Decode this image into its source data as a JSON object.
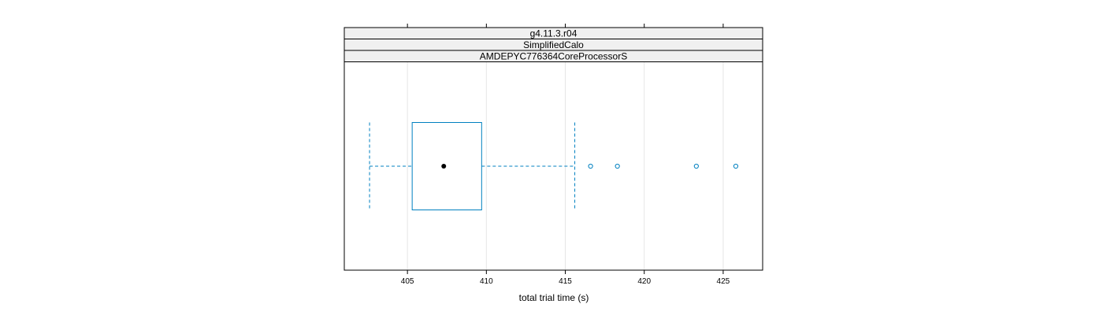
{
  "chart_data": {
    "type": "boxplot",
    "strips": [
      "g4.11.3.r04",
      "SimplifiedCalo",
      "AMDEPYC776364CoreProcessorS"
    ],
    "xlabel": "total trial time (s)",
    "xlim": [
      401,
      427.5
    ],
    "xticks": [
      405,
      410,
      415,
      420,
      425
    ],
    "grid": true,
    "box": {
      "whisker_low": 402.6,
      "q1": 405.3,
      "median": 407.3,
      "q3": 409.7,
      "whisker_high": 415.6,
      "outliers": [
        416.6,
        418.3,
        423.3,
        425.8
      ]
    },
    "colors": {
      "box": "#0080c0",
      "median_dot": "#000000",
      "strip_bg": "#f0f0f0",
      "grid": "#e6e6e6",
      "frame": "#000000"
    }
  }
}
